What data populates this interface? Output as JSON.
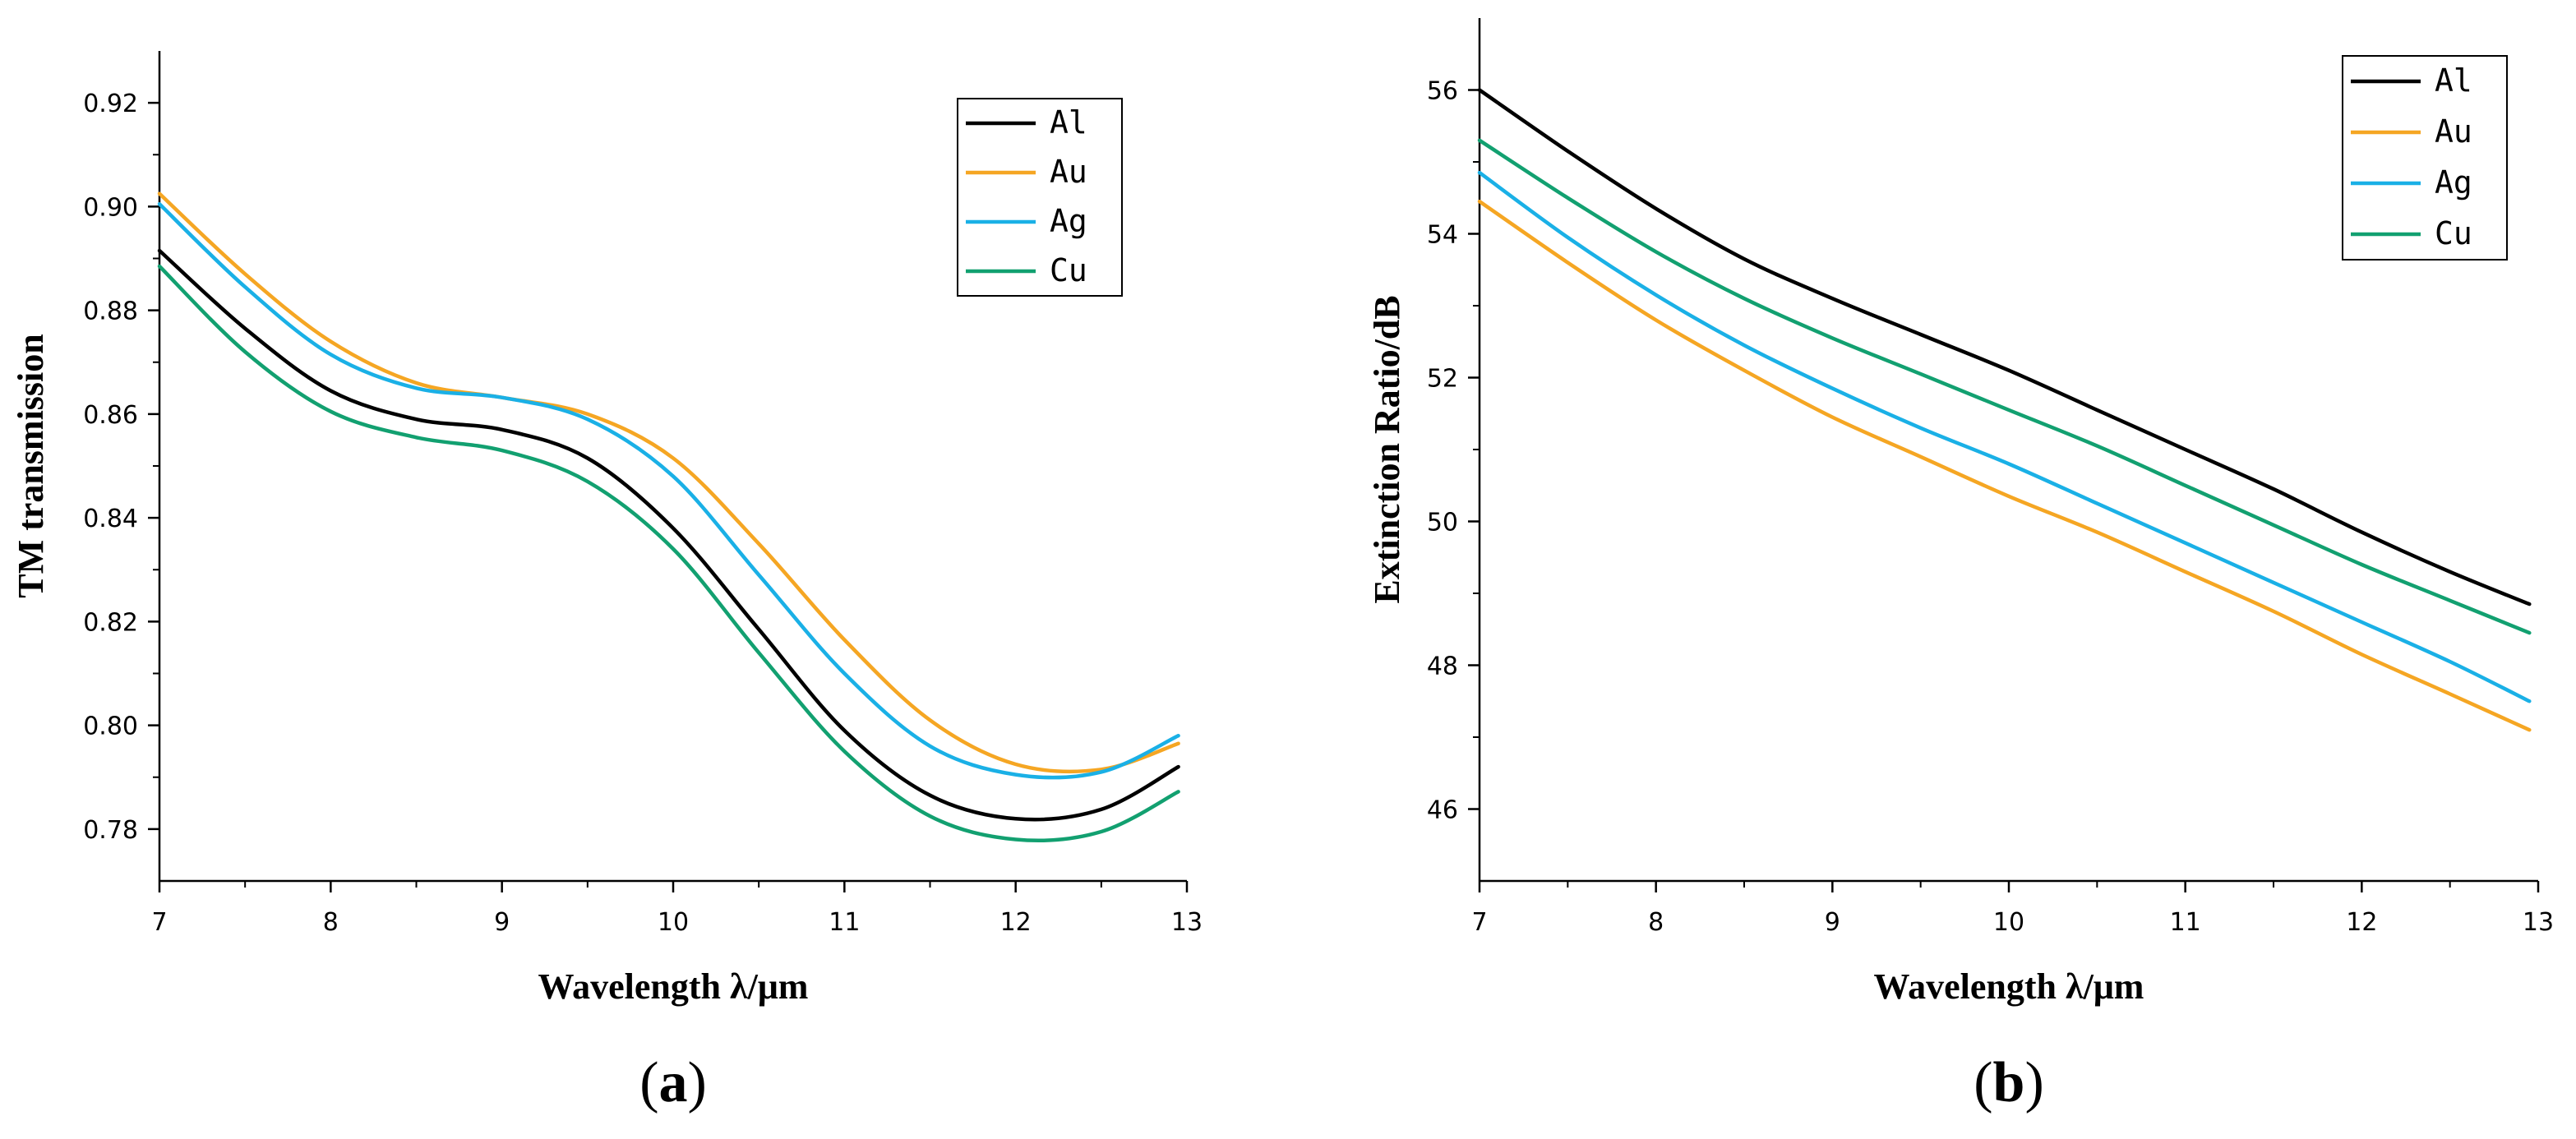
{
  "chart_data": [
    {
      "type": "line",
      "panel": "(a)",
      "panel_letter": "a",
      "xlabel": "Wavelength λ/μm",
      "ylabel": "TM transmission",
      "xlim": [
        7,
        13
      ],
      "ylim": [
        0.77,
        0.93
      ],
      "xticks": [
        "7",
        "8",
        "9",
        "10",
        "11",
        "12",
        "13"
      ],
      "yticks": [
        "0.78",
        "0.80",
        "0.82",
        "0.84",
        "0.86",
        "0.88",
        "0.90",
        "0.92"
      ],
      "legend_position": "top-right",
      "x": [
        7.0,
        7.5,
        8.0,
        8.5,
        9.0,
        9.5,
        10.0,
        10.5,
        11.0,
        11.5,
        12.0,
        12.5,
        12.95
      ],
      "series": [
        {
          "name": "Al",
          "color": "#000000",
          "values": [
            0.8915,
            0.8765,
            0.8645,
            0.859,
            0.857,
            0.8515,
            0.838,
            0.8185,
            0.799,
            0.7865,
            0.782,
            0.7838,
            0.792
          ]
        },
        {
          "name": "Au",
          "color": "#F5A623",
          "values": [
            0.9025,
            0.887,
            0.874,
            0.866,
            0.8632,
            0.86,
            0.8515,
            0.835,
            0.8165,
            0.801,
            0.7925,
            0.7915,
            0.7965
          ]
        },
        {
          "name": "Ag",
          "color": "#1AB0E6",
          "values": [
            0.9005,
            0.8845,
            0.8715,
            0.865,
            0.8632,
            0.859,
            0.848,
            0.829,
            0.81,
            0.796,
            0.7905,
            0.791,
            0.798
          ]
        },
        {
          "name": "Cu",
          "color": "#12A070",
          "values": [
            0.8885,
            0.872,
            0.8605,
            0.8555,
            0.853,
            0.847,
            0.834,
            0.814,
            0.795,
            0.7825,
            0.778,
            0.7795,
            0.7872
          ]
        }
      ]
    },
    {
      "type": "line",
      "panel": "(b)",
      "panel_letter": "b",
      "xlabel": "Wavelength λ/μm",
      "ylabel": "Extinction Ratio/dB",
      "xlim": [
        7,
        13
      ],
      "ylim": [
        45,
        57
      ],
      "xticks": [
        "7",
        "8",
        "9",
        "10",
        "11",
        "12",
        "13"
      ],
      "yticks": [
        "46",
        "48",
        "50",
        "52",
        "54",
        "56"
      ],
      "legend_position": "top-right",
      "x": [
        7.0,
        7.5,
        8.0,
        8.5,
        9.0,
        9.5,
        10.0,
        10.5,
        11.0,
        11.5,
        12.0,
        12.5,
        12.95
      ],
      "series": [
        {
          "name": "Al",
          "color": "#000000",
          "values": [
            56.0,
            55.15,
            54.35,
            53.65,
            53.1,
            52.6,
            52.1,
            51.55,
            51.0,
            50.45,
            49.85,
            49.3,
            48.85
          ]
        },
        {
          "name": "Au",
          "color": "#F5A623",
          "values": [
            54.45,
            53.6,
            52.8,
            52.1,
            51.45,
            50.9,
            50.35,
            49.85,
            49.3,
            48.75,
            48.15,
            47.6,
            47.1
          ]
        },
        {
          "name": "Ag",
          "color": "#1AB0E6",
          "values": [
            54.85,
            53.95,
            53.15,
            52.45,
            51.85,
            51.3,
            50.8,
            50.25,
            49.7,
            49.15,
            48.6,
            48.05,
            47.5
          ]
        },
        {
          "name": "Cu",
          "color": "#12A070",
          "values": [
            55.3,
            54.5,
            53.75,
            53.1,
            52.55,
            52.05,
            51.55,
            51.05,
            50.5,
            49.95,
            49.4,
            48.9,
            48.45
          ]
        }
      ]
    }
  ]
}
